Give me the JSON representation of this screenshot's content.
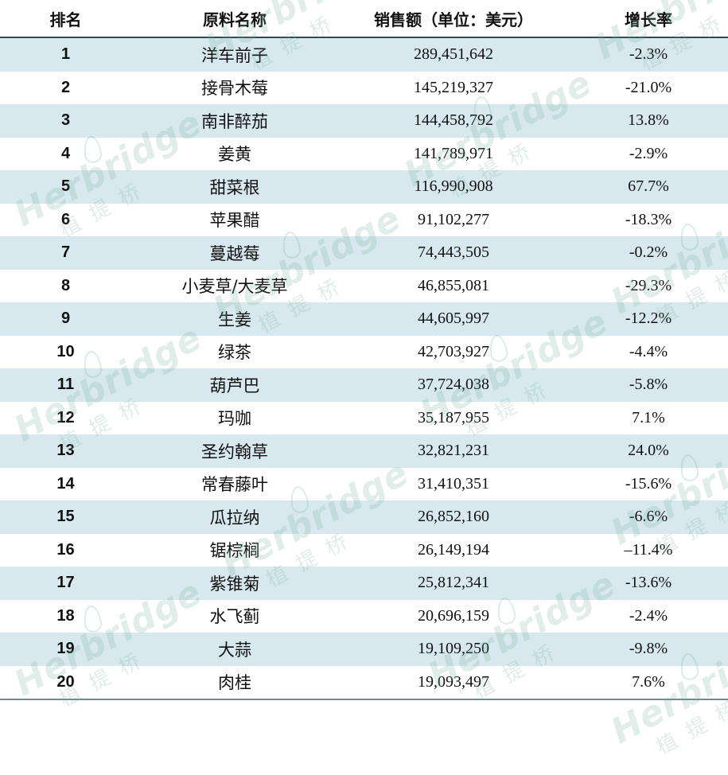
{
  "table": {
    "headers": {
      "rank": "排名",
      "name": "原料名称",
      "sales": "销售额（单位：美元）",
      "growth": "增长率"
    },
    "rows": [
      {
        "rank": "1",
        "name": "洋车前子",
        "sales": "289,451,642",
        "growth": "-2.3%"
      },
      {
        "rank": "2",
        "name": "接骨木莓",
        "sales": "145,219,327",
        "growth": "-21.0%"
      },
      {
        "rank": "3",
        "name": "南非醉茄",
        "sales": "144,458,792",
        "growth": "13.8%"
      },
      {
        "rank": "4",
        "name": "姜黄",
        "sales": "141,789,971",
        "growth": "-2.9%"
      },
      {
        "rank": "5",
        "name": "甜菜根",
        "sales": "116,990,908",
        "growth": "67.7%"
      },
      {
        "rank": "6",
        "name": "苹果醋",
        "sales": "91,102,277",
        "growth": "-18.3%"
      },
      {
        "rank": "7",
        "name": "蔓越莓",
        "sales": "74,443,505",
        "growth": "-0.2%"
      },
      {
        "rank": "8",
        "name": "小麦草/大麦草",
        "sales": "46,855,081",
        "growth": "-29.3%"
      },
      {
        "rank": "9",
        "name": "生姜",
        "sales": "44,605,997",
        "growth": "-12.2%"
      },
      {
        "rank": "10",
        "name": "绿茶",
        "sales": "42,703,927",
        "growth": "-4.4%"
      },
      {
        "rank": "11",
        "name": "葫芦巴",
        "sales": "37,724,038",
        "growth": "-5.8%"
      },
      {
        "rank": "12",
        "name": "玛咖",
        "sales": "35,187,955",
        "growth": "7.1%"
      },
      {
        "rank": "13",
        "name": "圣约翰草",
        "sales": "32,821,231",
        "growth": "24.0%"
      },
      {
        "rank": "14",
        "name": "常春藤叶",
        "sales": "31,410,351",
        "growth": "-15.6%"
      },
      {
        "rank": "15",
        "name": "瓜拉纳",
        "sales": "26,852,160",
        "growth": "-6.6%"
      },
      {
        "rank": "16",
        "name": "锯棕榈",
        "sales": "26,149,194",
        "growth": "–11.4%"
      },
      {
        "rank": "17",
        "name": "紫锥菊",
        "sales": "25,812,341",
        "growth": "-13.6%"
      },
      {
        "rank": "18",
        "name": "水飞蓟",
        "sales": "20,696,159",
        "growth": "-2.4%"
      },
      {
        "rank": "19",
        "name": "大蒜",
        "sales": "19,109,250",
        "growth": "-9.8%"
      },
      {
        "rank": "20",
        "name": "肉桂",
        "sales": "19,093,497",
        "growth": "7.6%"
      }
    ]
  },
  "watermark": {
    "word": "Herbridge",
    "sub": "植提桥"
  },
  "colors": {
    "stripe": "#d7e9ee",
    "header_rule": "#2b4a5a",
    "watermark": "#78af96"
  }
}
